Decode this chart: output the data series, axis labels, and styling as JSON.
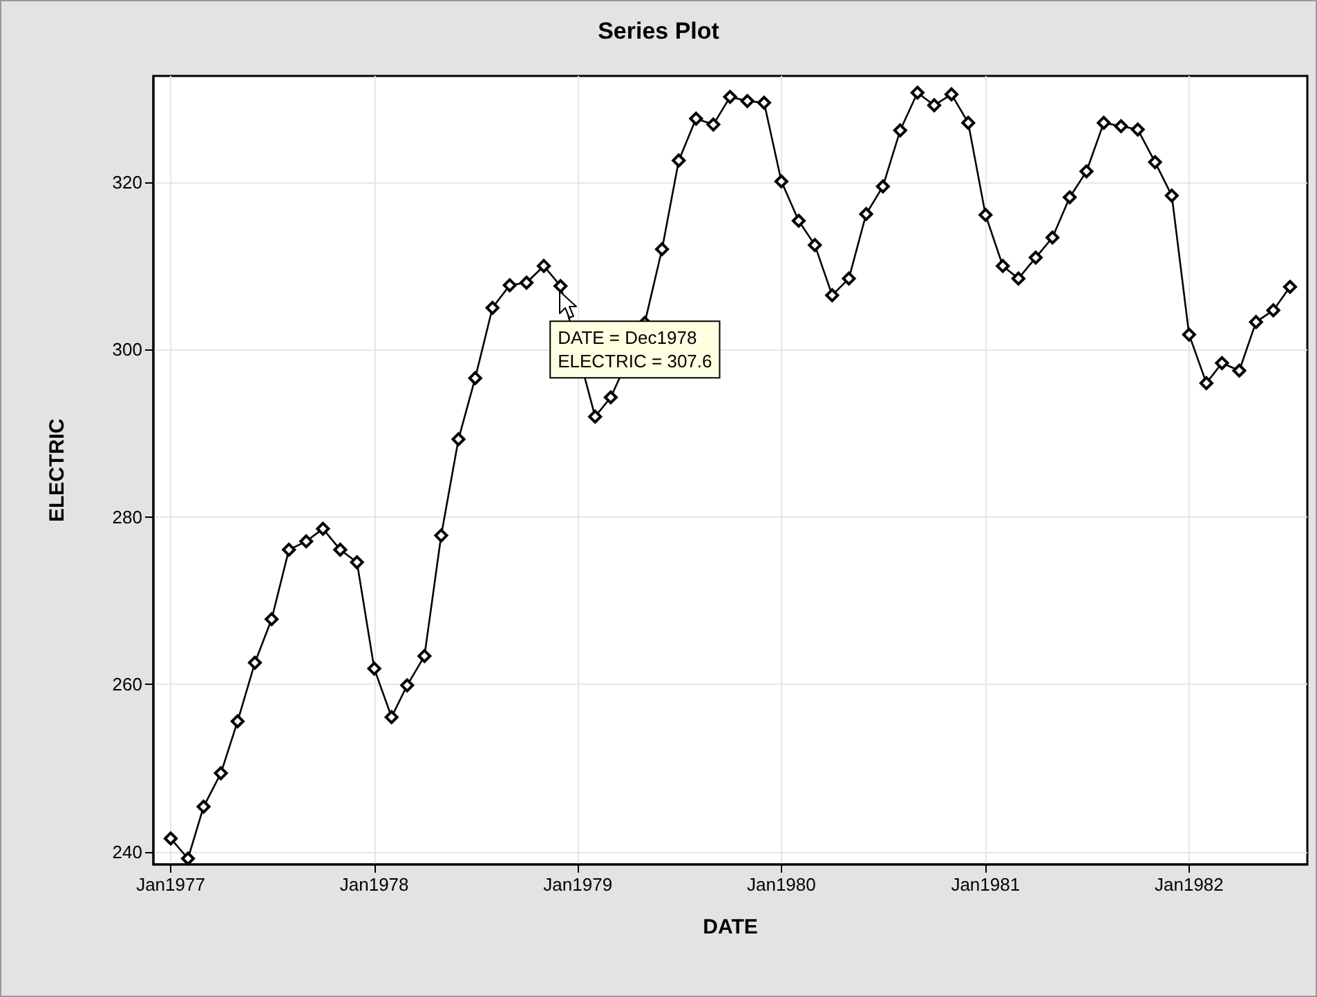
{
  "chart_data": {
    "type": "line",
    "title": "Series Plot",
    "xlabel": "DATE",
    "ylabel": "ELECTRIC",
    "x": [
      "1977-01",
      "1977-02",
      "1977-03",
      "1977-04",
      "1977-05",
      "1977-06",
      "1977-07",
      "1977-08",
      "1977-09",
      "1977-10",
      "1977-11",
      "1977-12",
      "1978-01",
      "1978-02",
      "1978-03",
      "1978-04",
      "1978-05",
      "1978-06",
      "1978-07",
      "1978-08",
      "1978-09",
      "1978-10",
      "1978-11",
      "1978-12",
      "1979-01",
      "1979-02",
      "1979-03",
      "1979-04",
      "1979-05",
      "1979-06",
      "1979-07",
      "1979-08",
      "1979-09",
      "1979-10",
      "1979-11",
      "1979-12",
      "1980-01",
      "1980-02",
      "1980-03",
      "1980-04",
      "1980-05",
      "1980-06",
      "1980-07",
      "1980-08",
      "1980-09",
      "1980-10",
      "1980-11",
      "1980-12",
      "1981-01",
      "1981-02",
      "1981-03",
      "1981-04",
      "1981-05",
      "1981-06",
      "1981-07",
      "1981-08",
      "1981-09",
      "1981-10",
      "1981-11",
      "1981-12",
      "1982-01",
      "1982-02",
      "1982-03",
      "1982-04",
      "1982-05",
      "1982-06",
      "1982-07"
    ],
    "series": [
      {
        "color": "#000000",
        "values": [
          241.6,
          239.2,
          245.4,
          249.4,
          255.6,
          262.6,
          267.8,
          276.1,
          277.1,
          278.6,
          276.1,
          274.6,
          261.9,
          256.1,
          259.9,
          263.4,
          277.8,
          289.3,
          296.6,
          305.0,
          307.7,
          308.0,
          310.0,
          307.6,
          null,
          292.0,
          294.3,
          null,
          303.2,
          312.0,
          322.6,
          327.6,
          326.9,
          330.2,
          329.7,
          329.5,
          320.1,
          315.4,
          312.5,
          306.5,
          308.5,
          316.2,
          319.5,
          326.2,
          330.7,
          329.2,
          330.5,
          327.1,
          316.1,
          310.0,
          308.5,
          311.0,
          313.4,
          318.2,
          321.3,
          327.1,
          326.7,
          326.3,
          322.4,
          318.4,
          301.8,
          296.0,
          298.4,
          297.5,
          303.3,
          304.7,
          307.5
        ]
      }
    ],
    "xlim": [
      "1976-12",
      "1982-08"
    ],
    "xticks": [
      {
        "value": "1977-01",
        "label": "Jan1977"
      },
      {
        "value": "1978-01",
        "label": "Jan1978"
      },
      {
        "value": "1979-01",
        "label": "Jan1979"
      },
      {
        "value": "1980-01",
        "label": "Jan1980"
      },
      {
        "value": "1981-01",
        "label": "Jan1981"
      },
      {
        "value": "1982-01",
        "label": "Jan1982"
      }
    ],
    "ylim": [
      238.5,
      332.7
    ],
    "yticks": [
      240,
      260,
      280,
      300,
      320
    ],
    "annotations": [
      {
        "text": "DATE = Dec1978\nELECTRIC = 307.6",
        "x": "1978-12",
        "y": 307.6
      }
    ],
    "grid": true,
    "marker": "diamond",
    "line_style": "solid"
  }
}
